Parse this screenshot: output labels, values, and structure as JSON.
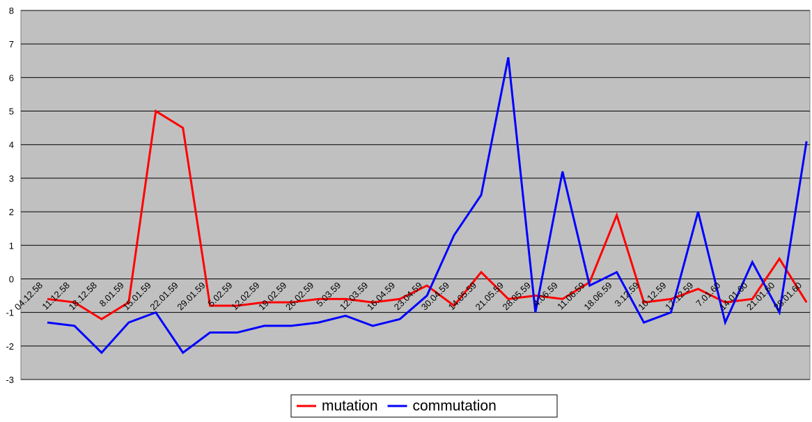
{
  "chart_data": {
    "type": "line",
    "categories": [
      "04.12.58",
      "11.12.58",
      "18.12.58",
      "8.01.59",
      "15.01.59",
      "22.01.59",
      "29.01.59",
      "5.02.59",
      "12.02.59",
      "19.02.59",
      "26.02.59",
      "5.03.59",
      "12.03.59",
      "16.04.59",
      "23.04.59",
      "30.04.59",
      "14.05.59",
      "21.05.59",
      "28.05.59",
      "4.06.59",
      "11.06.59",
      "18.06.59",
      "3.12.59",
      "10.12.59",
      "17.12.59",
      "7.01.60",
      "14.01.60",
      "21.01.60",
      "28.01.60"
    ],
    "series": [
      {
        "name": "mutation",
        "color": "#ff0000",
        "values": [
          -0.6,
          -0.7,
          -1.2,
          -0.7,
          5.0,
          4.5,
          -0.8,
          -0.8,
          -0.7,
          -0.7,
          -0.6,
          -0.6,
          -0.7,
          -0.6,
          -0.2,
          -0.8,
          0.2,
          -0.6,
          -0.5,
          -0.6,
          -0.1,
          1.9,
          -0.7,
          -0.6,
          -0.3,
          -0.7,
          -0.6,
          0.6,
          -0.7
        ]
      },
      {
        "name": "commutation",
        "color": "#0000ff",
        "values": [
          -1.3,
          -1.4,
          -2.2,
          -1.3,
          -1.0,
          -2.2,
          -1.6,
          -1.6,
          -1.4,
          -1.4,
          -1.3,
          -1.1,
          -1.4,
          -1.2,
          -0.5,
          1.3,
          2.5,
          6.6,
          -1.0,
          3.2,
          -0.2,
          0.2,
          -1.3,
          -1.0,
          2.0,
          -1.3,
          0.5,
          -1.0,
          4.1
        ]
      }
    ],
    "ylim": [
      -3,
      8
    ],
    "yticks": [
      -3,
      -2,
      -1,
      0,
      1,
      2,
      3,
      4,
      5,
      6,
      7,
      8
    ],
    "grid": true,
    "legend": "bottom"
  }
}
